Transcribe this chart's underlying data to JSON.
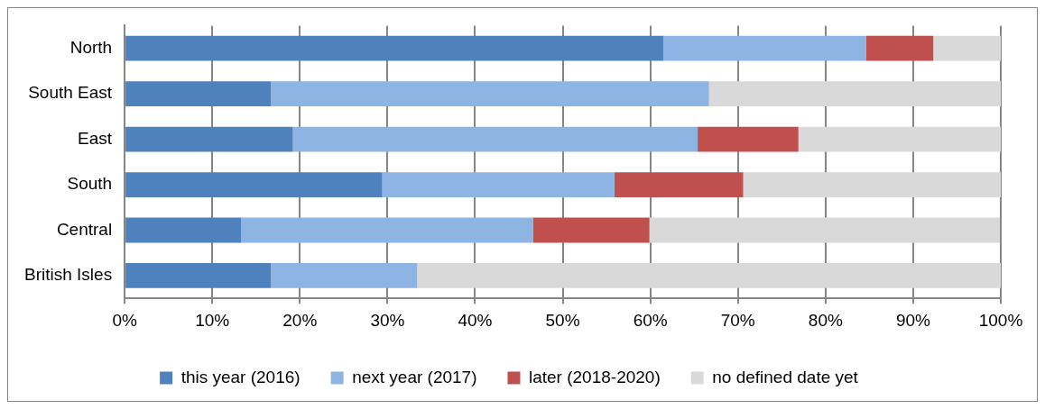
{
  "chart_data": {
    "type": "bar",
    "orientation": "horizontal",
    "stacked": true,
    "categories": [
      "North",
      "South East",
      "East",
      "South",
      "Central",
      "British Isles"
    ],
    "series": [
      {
        "name": "this year (2016)",
        "color": "#4f81bd",
        "values": [
          61.5,
          16.7,
          19.2,
          29.4,
          13.3,
          16.7
        ]
      },
      {
        "name": "next year (2017)",
        "color": "#8eb4e3",
        "values": [
          23.1,
          50,
          46.2,
          26.5,
          33.3,
          16.7
        ]
      },
      {
        "name": "later (2018-2020)",
        "color": "#c0504d",
        "values": [
          7.7,
          0,
          11.5,
          14.7,
          13.3,
          0
        ]
      },
      {
        "name": "no defined date yet",
        "color": "#d9d9d9",
        "values": [
          7.7,
          33.3,
          23.1,
          29.4,
          40,
          66.7
        ]
      }
    ],
    "xlim": [
      0,
      100
    ],
    "xticks": [
      {
        "value": 0,
        "label": "0%"
      },
      {
        "value": 10,
        "label": "10%"
      },
      {
        "value": 20,
        "label": "20%"
      },
      {
        "value": 30,
        "label": "30%"
      },
      {
        "value": 40,
        "label": "40%"
      },
      {
        "value": 50,
        "label": "50%"
      },
      {
        "value": 60,
        "label": "60%"
      },
      {
        "value": 70,
        "label": "70%"
      },
      {
        "value": 80,
        "label": "80%"
      },
      {
        "value": 90,
        "label": "90%"
      },
      {
        "value": 100,
        "label": "100%"
      }
    ],
    "grid": "x",
    "legend": "bottom"
  }
}
